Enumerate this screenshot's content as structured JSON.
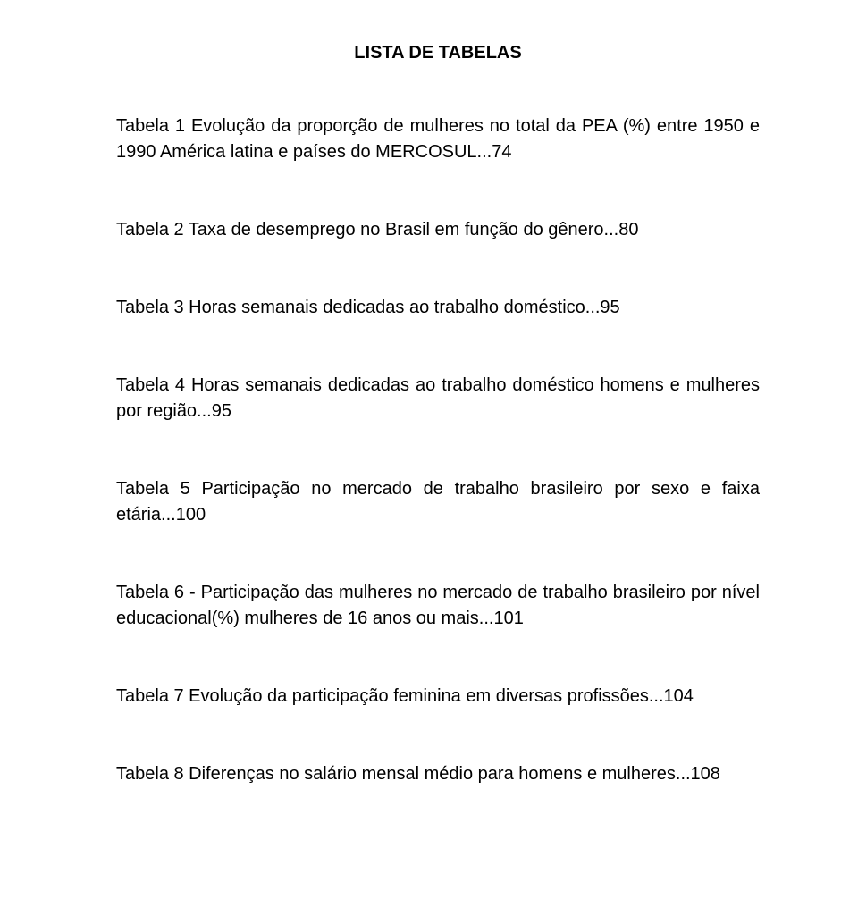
{
  "title": "LISTA DE TABELAS",
  "entries": [
    "Tabela 1 Evolução da proporção de mulheres no total da PEA (%) entre 1950 e 1990 América latina e países do MERCOSUL...74",
    "Tabela 2 Taxa de desemprego no Brasil em função do gênero...80",
    "Tabela 3 Horas semanais dedicadas ao trabalho doméstico...95",
    "Tabela 4 Horas semanais dedicadas ao trabalho doméstico homens e mulheres por região...95",
    "Tabela 5 Participação no mercado de trabalho brasileiro por sexo e faixa etária...100",
    "Tabela 6 - Participação das mulheres no mercado de trabalho brasileiro por nível educacional(%) mulheres de 16 anos ou mais...101",
    "Tabela 7 Evolução da participação feminina em diversas profissões...104",
    "Tabela 8 Diferenças no salário mensal médio para homens e mulheres...108"
  ]
}
